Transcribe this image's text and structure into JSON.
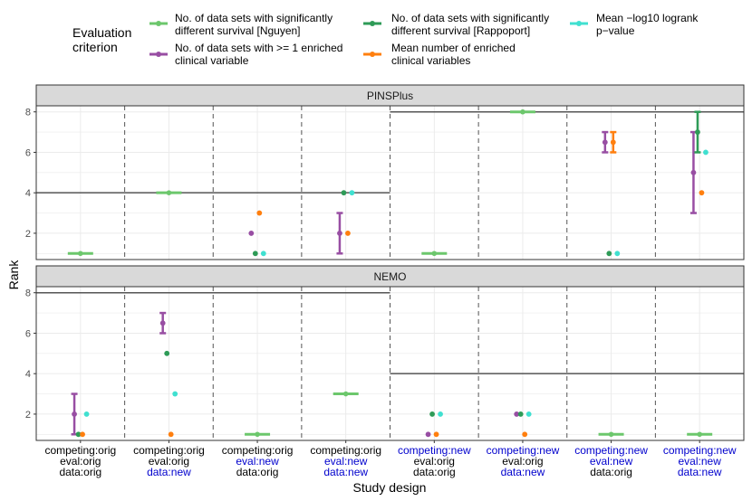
{
  "legend": {
    "title_line1": "Evaluation",
    "title_line2": "criterion",
    "items": [
      {
        "key": "nguyen",
        "line1": "No. of data sets with significantly",
        "line2": "different survival [Nguyen]",
        "color": "#6CC76C"
      },
      {
        "key": "enriched_any",
        "line1": "No. of data sets with >= 1 enriched",
        "line2": "clinical variable",
        "color": "#984EA3"
      },
      {
        "key": "rappoport",
        "line1": "No. of data sets with significantly",
        "line2": "different survival [Rappoport]",
        "color": "#2E9B57"
      },
      {
        "key": "mean_enriched",
        "line1": "Mean number of enriched",
        "line2": "clinical variables",
        "color": "#FF7F0E"
      },
      {
        "key": "logrank",
        "line1": "Mean −log10 logrank",
        "line2": "p−value",
        "color": "#40E0D0"
      }
    ]
  },
  "chart_data": {
    "type": "scatter",
    "y_label": "Rank",
    "x_label": "Study design",
    "ylim": [
      0.7,
      8.3
    ],
    "y_ticks": [
      2,
      4,
      6,
      8
    ],
    "categories": [
      {
        "line1": "competing:orig",
        "line2": "eval:orig",
        "line3": "data:orig",
        "c1": "#000000",
        "c2": "#000000",
        "c3": "#000000"
      },
      {
        "line1": "competing:orig",
        "line2": "eval:orig",
        "line3": "data:new",
        "c1": "#000000",
        "c2": "#000000",
        "c3": "#0000CD"
      },
      {
        "line1": "competing:orig",
        "line2": "eval:new",
        "line3": "data:orig",
        "c1": "#000000",
        "c2": "#0000CD",
        "c3": "#000000"
      },
      {
        "line1": "competing:orig",
        "line2": "eval:new",
        "line3": "data:new",
        "c1": "#000000",
        "c2": "#0000CD",
        "c3": "#0000CD"
      },
      {
        "line1": "competing:new",
        "line2": "eval:orig",
        "line3": "data:orig",
        "c1": "#0000CD",
        "c2": "#000000",
        "c3": "#000000"
      },
      {
        "line1": "competing:new",
        "line2": "eval:orig",
        "line3": "data:new",
        "c1": "#0000CD",
        "c2": "#000000",
        "c3": "#0000CD"
      },
      {
        "line1": "competing:new",
        "line2": "eval:new",
        "line3": "data:orig",
        "c1": "#0000CD",
        "c2": "#0000CD",
        "c3": "#000000"
      },
      {
        "line1": "competing:new",
        "line2": "eval:new",
        "line3": "data:new",
        "c1": "#0000CD",
        "c2": "#0000CD",
        "c3": "#0000CD"
      }
    ],
    "series_order": [
      "nguyen",
      "enriched_any",
      "rappoport",
      "mean_enriched",
      "logrank"
    ],
    "panels": [
      {
        "title": "PINSPlus",
        "reference_lines": [
          {
            "from": 0,
            "to": 3,
            "y": 4
          },
          {
            "from": 4,
            "to": 7,
            "y": 8
          }
        ],
        "points": [
          {
            "cat": 0,
            "series": "nguyen",
            "y": 1,
            "ymin": 1,
            "ymax": 1
          },
          {
            "cat": 1,
            "series": "nguyen",
            "y": 4,
            "ymin": 4,
            "ymax": 4
          },
          {
            "cat": 2,
            "series": "enriched_any",
            "y": 2,
            "ymin": 2,
            "ymax": 2
          },
          {
            "cat": 2,
            "series": "rappoport",
            "y": 1,
            "ymin": 1,
            "ymax": 1
          },
          {
            "cat": 2,
            "series": "mean_enriched",
            "y": 3,
            "ymin": 3,
            "ymax": 3
          },
          {
            "cat": 2,
            "series": "logrank",
            "y": 1,
            "ymin": 1,
            "ymax": 1
          },
          {
            "cat": 3,
            "series": "enriched_any",
            "y": 2,
            "ymin": 1,
            "ymax": 3
          },
          {
            "cat": 3,
            "series": "rappoport",
            "y": 4,
            "ymin": 4,
            "ymax": 4
          },
          {
            "cat": 3,
            "series": "mean_enriched",
            "y": 2,
            "ymin": 2,
            "ymax": 2
          },
          {
            "cat": 3,
            "series": "logrank",
            "y": 4,
            "ymin": 4,
            "ymax": 4
          },
          {
            "cat": 4,
            "series": "nguyen",
            "y": 1,
            "ymin": 1,
            "ymax": 1
          },
          {
            "cat": 5,
            "series": "nguyen",
            "y": 8,
            "ymin": 8,
            "ymax": 8
          },
          {
            "cat": 6,
            "series": "enriched_any",
            "y": 6.5,
            "ymin": 6,
            "ymax": 7
          },
          {
            "cat": 6,
            "series": "rappoport",
            "y": 1,
            "ymin": 1,
            "ymax": 1
          },
          {
            "cat": 6,
            "series": "mean_enriched",
            "y": 6.5,
            "ymin": 6,
            "ymax": 7
          },
          {
            "cat": 6,
            "series": "logrank",
            "y": 1,
            "ymin": 1,
            "ymax": 1
          },
          {
            "cat": 7,
            "series": "enriched_any",
            "y": 5,
            "ymin": 3,
            "ymax": 7
          },
          {
            "cat": 7,
            "series": "rappoport",
            "y": 7,
            "ymin": 6,
            "ymax": 8
          },
          {
            "cat": 7,
            "series": "mean_enriched",
            "y": 4,
            "ymin": 4,
            "ymax": 4
          },
          {
            "cat": 7,
            "series": "logrank",
            "y": 6,
            "ymin": 6,
            "ymax": 6
          }
        ]
      },
      {
        "title": "NEMO",
        "reference_lines": [
          {
            "from": 0,
            "to": 3,
            "y": 8
          },
          {
            "from": 4,
            "to": 7,
            "y": 4
          }
        ],
        "points": [
          {
            "cat": 0,
            "series": "enriched_any",
            "y": 2,
            "ymin": 1,
            "ymax": 3
          },
          {
            "cat": 0,
            "series": "rappoport",
            "y": 1,
            "ymin": 1,
            "ymax": 1
          },
          {
            "cat": 0,
            "series": "mean_enriched",
            "y": 1,
            "ymin": 1,
            "ymax": 1
          },
          {
            "cat": 0,
            "series": "logrank",
            "y": 2,
            "ymin": 2,
            "ymax": 2
          },
          {
            "cat": 1,
            "series": "enriched_any",
            "y": 6.5,
            "ymin": 6,
            "ymax": 7
          },
          {
            "cat": 1,
            "series": "rappoport",
            "y": 5,
            "ymin": 5,
            "ymax": 5
          },
          {
            "cat": 1,
            "series": "mean_enriched",
            "y": 1,
            "ymin": 1,
            "ymax": 1
          },
          {
            "cat": 1,
            "series": "logrank",
            "y": 3,
            "ymin": 3,
            "ymax": 3
          },
          {
            "cat": 2,
            "series": "nguyen",
            "y": 1,
            "ymin": 1,
            "ymax": 1
          },
          {
            "cat": 3,
            "series": "nguyen",
            "y": 3,
            "ymin": 3,
            "ymax": 3
          },
          {
            "cat": 4,
            "series": "enriched_any",
            "y": 1,
            "ymin": 1,
            "ymax": 1
          },
          {
            "cat": 4,
            "series": "rappoport",
            "y": 2,
            "ymin": 2,
            "ymax": 2
          },
          {
            "cat": 4,
            "series": "mean_enriched",
            "y": 1,
            "ymin": 1,
            "ymax": 1
          },
          {
            "cat": 4,
            "series": "logrank",
            "y": 2,
            "ymin": 2,
            "ymax": 2
          },
          {
            "cat": 5,
            "series": "enriched_any",
            "y": 2,
            "ymin": 2,
            "ymax": 2
          },
          {
            "cat": 5,
            "series": "rappoport",
            "y": 2,
            "ymin": 2,
            "ymax": 2
          },
          {
            "cat": 5,
            "series": "mean_enriched",
            "y": 1,
            "ymin": 1,
            "ymax": 1
          },
          {
            "cat": 5,
            "series": "logrank",
            "y": 2,
            "ymin": 2,
            "ymax": 2
          },
          {
            "cat": 6,
            "series": "nguyen",
            "y": 1,
            "ymin": 1,
            "ymax": 1
          },
          {
            "cat": 7,
            "series": "nguyen",
            "y": 1,
            "ymin": 1,
            "ymax": 1
          }
        ]
      }
    ]
  }
}
